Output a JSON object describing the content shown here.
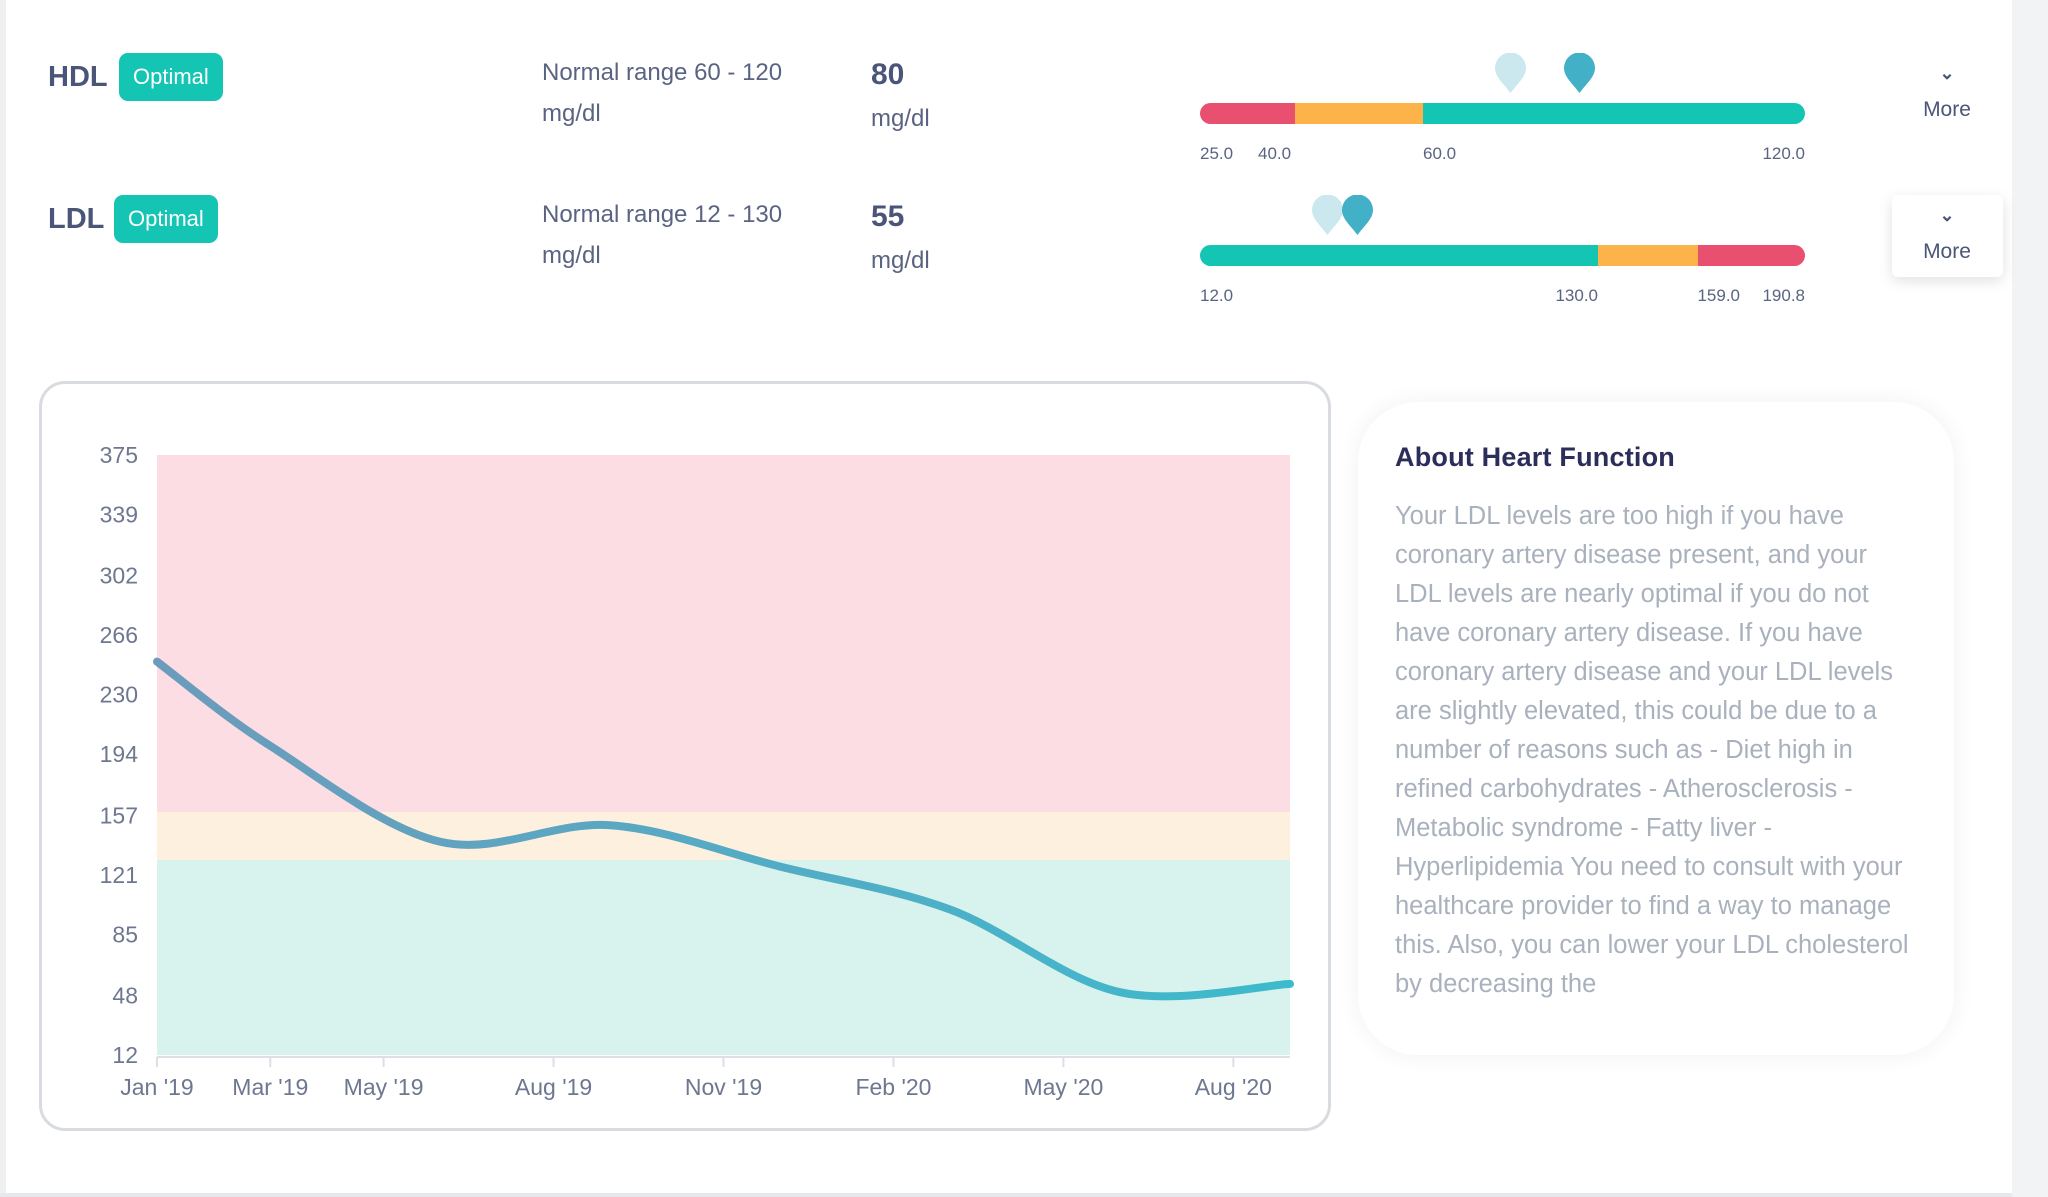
{
  "colors": {
    "red": "#e94f6f",
    "orange": "#fbb34a",
    "green": "#14c5b3",
    "marker_current": "#42b0c6",
    "marker_previous": "#cce8ef"
  },
  "metrics": [
    {
      "name": "HDL",
      "status": "Optimal",
      "range_text": "Normal range 60 - 120",
      "range_unit": "mg/dl",
      "value": "80",
      "unit": "mg/dl",
      "segments": [
        {
          "color": "red",
          "from": 25.0
        },
        {
          "color": "orange",
          "from": 40.0
        },
        {
          "color": "green",
          "from": 60.0
        }
      ],
      "tick_labels": [
        "25.0",
        "40.0",
        "60.0",
        "120.0"
      ],
      "more_label": "More",
      "more_icon": "chevron-down-icon"
    },
    {
      "name": "LDL",
      "status": "Optimal",
      "range_text": "Normal range 12 - 130",
      "range_unit": "mg/dl",
      "value": "55",
      "unit": "mg/dl",
      "segments": [
        {
          "color": "green",
          "from": 12.0
        },
        {
          "color": "orange",
          "from": 130.0
        },
        {
          "color": "red",
          "from": 159.0
        }
      ],
      "tick_labels": [
        "12.0",
        "130.0",
        "159.0",
        "190.8"
      ],
      "more_label": "More",
      "more_icon": "chevron-down-icon"
    }
  ],
  "about": {
    "title": "About Heart Function",
    "body": "Your LDL levels are too high if you have coronary artery disease present, and your LDL levels are nearly optimal if you do not have coronary artery disease. If you have coronary artery disease and your LDL levels are slightly elevated, this could be due to a number of reasons such as - Diet high in refined carbohydrates - Atherosclerosis - Metabolic syndrome - Fatty liver - Hyperlipidemia You need to consult with your healthcare provider to find a way to manage this. Also, you can lower your LDL cholesterol by decreasing the"
  },
  "chart_data": {
    "type": "line",
    "ylim": [
      12,
      375
    ],
    "y_ticks": [
      "375",
      "339",
      "302",
      "266",
      "230",
      "194",
      "157",
      "121",
      "85",
      "48",
      "12"
    ],
    "x_range": [
      "2019-01",
      "2020-09"
    ],
    "x_ticks": [
      {
        "label": "Jan '19",
        "date": "2019-01"
      },
      {
        "label": "Mar '19",
        "date": "2019-03"
      },
      {
        "label": "May '19",
        "date": "2019-05"
      },
      {
        "label": "Aug '19",
        "date": "2019-08"
      },
      {
        "label": "Nov '19",
        "date": "2019-11"
      },
      {
        "label": "Feb '20",
        "date": "2020-02"
      },
      {
        "label": "May '20",
        "date": "2020-05"
      },
      {
        "label": "Aug '20",
        "date": "2020-08"
      }
    ],
    "bands": [
      {
        "from": 159,
        "to": 375,
        "color": "#fbdde3"
      },
      {
        "from": 130,
        "to": 159,
        "color": "#fdf0de"
      },
      {
        "from": 12,
        "to": 130,
        "color": "#d8f2ee"
      }
    ],
    "series": [
      {
        "x": [
          "2019-01",
          "2019-03",
          "2019-06",
          "2019-09",
          "2019-12",
          "2020-03",
          "2020-06",
          "2020-09"
        ],
        "y": [
          250,
          199,
          141,
          151,
          126,
          100,
          50,
          55
        ]
      }
    ],
    "line_colors": [
      "#6d9bbb",
      "#3dbacd"
    ],
    "grid": false
  }
}
